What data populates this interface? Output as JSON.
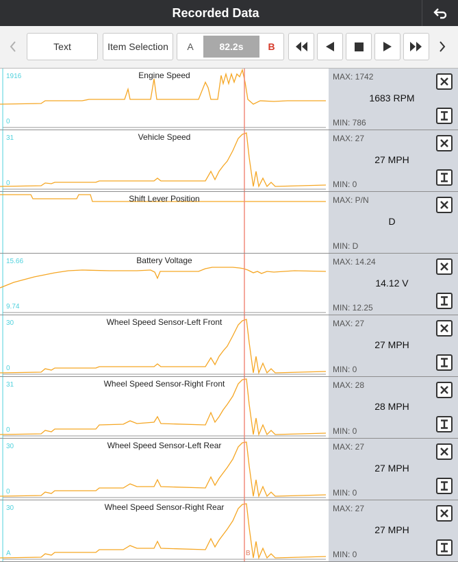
{
  "header": {
    "title": "Recorded Data"
  },
  "toolbar": {
    "text_label": "Text",
    "item_selection_label": "Item Selection",
    "a_label": "A",
    "time_value": "82.2s",
    "b_label": "B"
  },
  "colors": {
    "trace": "#f5a623",
    "cursor": "#f08a7a",
    "axis_label": "#4fd1dd",
    "panel": "#d4d8df"
  },
  "rows": [
    {
      "title": "Engine Speed",
      "ymax": "1916",
      "ymin": "0",
      "max": "MAX: 1742",
      "value": "1683 RPM",
      "min": "MIN: 786"
    },
    {
      "title": "Vehicle Speed",
      "ymax": "31",
      "ymin": "0",
      "max": "MAX: 27",
      "value": "27 MPH",
      "min": "MIN: 0"
    },
    {
      "title": "Shift Lever Position",
      "ymax": "",
      "ymin": "",
      "max": "MAX: P/N",
      "value": "D",
      "min": "MIN: D"
    },
    {
      "title": "Battery Voltage",
      "ymax": "15.66",
      "ymin": "9.74",
      "max": "MAX: 14.24",
      "value": "14.12 V",
      "min": "MIN: 12.25"
    },
    {
      "title": "Wheel Speed Sensor-Left Front",
      "ymax": "30",
      "ymin": "0",
      "max": "MAX: 27",
      "value": "27 MPH",
      "min": "MIN: 0"
    },
    {
      "title": "Wheel Speed Sensor-Right Front",
      "ymax": "31",
      "ymin": "0",
      "max": "MAX: 28",
      "value": "28 MPH",
      "min": "MIN: 0"
    },
    {
      "title": "Wheel Speed Sensor-Left Rear",
      "ymax": "30",
      "ymin": "0",
      "max": "MAX: 27",
      "value": "27 MPH",
      "min": "MIN: 0"
    },
    {
      "title": "Wheel Speed Sensor-Right Rear",
      "ymax": "30",
      "ymin": "",
      "max": "MAX: 27",
      "value": "27 MPH",
      "min": "MIN: 0"
    }
  ],
  "markers": {
    "a": "A",
    "b": "B"
  }
}
